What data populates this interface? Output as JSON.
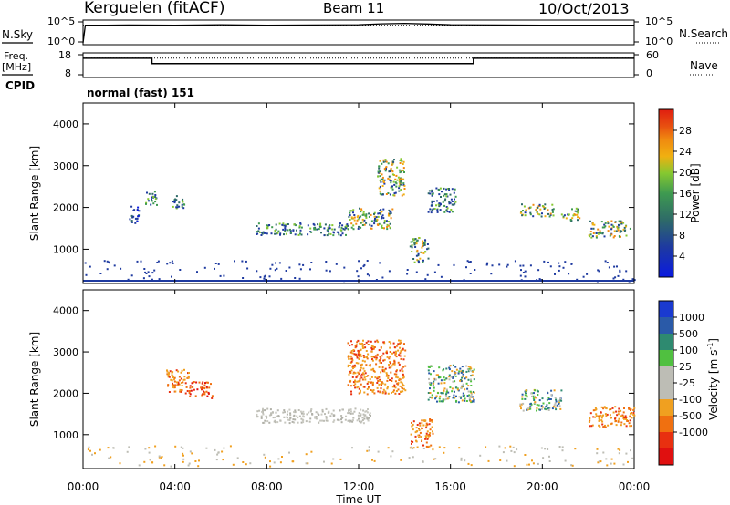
{
  "header": {
    "station": "Kerguelen (fitACF)",
    "beam": "Beam 11",
    "date": "10/Oct/2013"
  },
  "left_labels": {
    "nsky": "N.Sky",
    "freq_line1": "Freq.",
    "freq_line2": "[MHz]",
    "cpid": "CPID"
  },
  "right_labels": {
    "nsearch": "N.Search",
    "nave": "Nave"
  },
  "cpid_value": "normal (fast) 151",
  "colors": {
    "scatter_blue": "#2040b0",
    "scatter_green": "#3aa04a",
    "scatter_orange": "#f08a10",
    "scatter_red": "#e02010",
    "ground_scatter": "#b8b8b0"
  },
  "chart_data": [
    {
      "type": "line",
      "name": "noise-panel",
      "left_ticks": [
        "10^5",
        "10^0"
      ],
      "right_ticks": [
        "10^5",
        "10^0"
      ],
      "series": [
        {
          "name": "N.Sky",
          "style": "solid",
          "x": [
            0,
            0.1,
            1,
            2,
            4,
            6,
            8,
            10,
            12,
            13,
            14,
            15,
            16,
            18,
            20,
            22,
            24
          ],
          "y": [
            0,
            4.2,
            4.2,
            4.25,
            4.2,
            4.3,
            4.2,
            4.25,
            4.3,
            4.55,
            4.65,
            4.5,
            4.3,
            4.25,
            4.2,
            4.2,
            4.2
          ]
        },
        {
          "name": "N.Search",
          "style": "dotted",
          "x": [
            0,
            24
          ],
          "y": [
            4.2,
            4.2
          ]
        }
      ],
      "ylim": [
        0,
        5
      ]
    },
    {
      "type": "line",
      "name": "frequency-panel",
      "left_ticks": [
        "18",
        "8"
      ],
      "right_ticks": [
        "60",
        "0"
      ],
      "series": [
        {
          "name": "Freq.",
          "style": "solid",
          "x": [
            0,
            3,
            3,
            17,
            17,
            24
          ],
          "y": [
            14.5,
            14.5,
            12,
            12,
            14.5,
            14.5
          ]
        },
        {
          "name": "Nave",
          "style": "dotted",
          "x": [
            0,
            24
          ],
          "y": [
            14.6,
            14.6
          ]
        }
      ],
      "ylim": [
        8,
        18
      ]
    },
    {
      "type": "heatmap",
      "name": "power",
      "xlabel": "",
      "ylabel": "Slant Range [km]",
      "xlim": [
        0,
        24
      ],
      "ylim": [
        180,
        4500
      ],
      "yticks": [
        1000,
        2000,
        3000,
        4000
      ],
      "colorbar": {
        "label": "Power [dB]",
        "ticks": [
          "4",
          "8",
          "12",
          "16",
          "20",
          "24",
          "28"
        ],
        "colors": [
          "#0a1ae0",
          "#1e3aa0",
          "#2e6a68",
          "#3e9a50",
          "#86c830",
          "#f0b010",
          "#f08a10",
          "#e85010",
          "#e01e10"
        ]
      },
      "regions": [
        {
          "t0": 2.0,
          "t1": 2.4,
          "r0": 1600,
          "r1": 2100,
          "level": "blue"
        },
        {
          "t0": 2.7,
          "t1": 3.2,
          "r0": 2000,
          "r1": 2400,
          "level": "mixed"
        },
        {
          "t0": 3.8,
          "t1": 4.5,
          "r0": 2000,
          "r1": 2300,
          "level": "mixed"
        },
        {
          "t0": 7.5,
          "t1": 11.5,
          "r0": 1350,
          "r1": 1650,
          "level": "mixed"
        },
        {
          "t0": 11.5,
          "t1": 13.5,
          "r0": 1500,
          "r1": 2000,
          "level": "strong"
        },
        {
          "t0": 12.8,
          "t1": 14.0,
          "r0": 2300,
          "r1": 3200,
          "level": "strong"
        },
        {
          "t0": 14.2,
          "t1": 15.0,
          "r0": 700,
          "r1": 1300,
          "level": "strong"
        },
        {
          "t0": 15.0,
          "t1": 16.2,
          "r0": 1900,
          "r1": 2500,
          "level": "mixed"
        },
        {
          "t0": 19.0,
          "t1": 20.5,
          "r0": 1800,
          "r1": 2100,
          "level": "strong"
        },
        {
          "t0": 20.8,
          "t1": 21.6,
          "r0": 1700,
          "r1": 2000,
          "level": "strong"
        },
        {
          "t0": 22.0,
          "t1": 23.8,
          "r0": 1300,
          "r1": 1700,
          "level": "strong"
        }
      ]
    },
    {
      "type": "heatmap",
      "name": "velocity",
      "xlabel": "Time UT",
      "ylabel": "Slant Range [km]",
      "xlim": [
        0,
        24
      ],
      "ylim": [
        180,
        4500
      ],
      "yticks": [
        1000,
        2000,
        3000,
        4000
      ],
      "xticks": [
        "00:00",
        "04:00",
        "08:00",
        "12:00",
        "16:00",
        "20:00",
        "00:00"
      ],
      "colorbar": {
        "label": "Velocity [m s",
        "label_exponent": "-1",
        "label_close": "]",
        "ticks": [
          "1000",
          "500",
          "100",
          "25",
          "-25",
          "-100",
          "-500",
          "-1000"
        ],
        "colors": [
          "#1a3ad0",
          "#2a5aa8",
          "#2e8a70",
          "#50c040",
          "#bdbdb5",
          "#bdbdb5",
          "#f0a020",
          "#f07010",
          "#e83010",
          "#e01010"
        ]
      },
      "regions": [
        {
          "t0": 3.6,
          "t1": 4.6,
          "r0": 2000,
          "r1": 2600,
          "level": "orange"
        },
        {
          "t0": 4.6,
          "t1": 5.6,
          "r0": 1900,
          "r1": 2300,
          "level": "red"
        },
        {
          "t0": 7.5,
          "t1": 12.5,
          "r0": 1300,
          "r1": 1650,
          "level": "grey"
        },
        {
          "t0": 11.5,
          "t1": 14.0,
          "r0": 2000,
          "r1": 3300,
          "level": "orange"
        },
        {
          "t0": 14.2,
          "t1": 15.2,
          "r0": 700,
          "r1": 1400,
          "level": "orange"
        },
        {
          "t0": 15.0,
          "t1": 17.0,
          "r0": 1800,
          "r1": 2700,
          "level": "mixed"
        },
        {
          "t0": 19.0,
          "t1": 20.8,
          "r0": 1600,
          "r1": 2100,
          "level": "mixed"
        },
        {
          "t0": 22.0,
          "t1": 24.0,
          "r0": 1200,
          "r1": 1700,
          "level": "orange"
        }
      ]
    }
  ]
}
